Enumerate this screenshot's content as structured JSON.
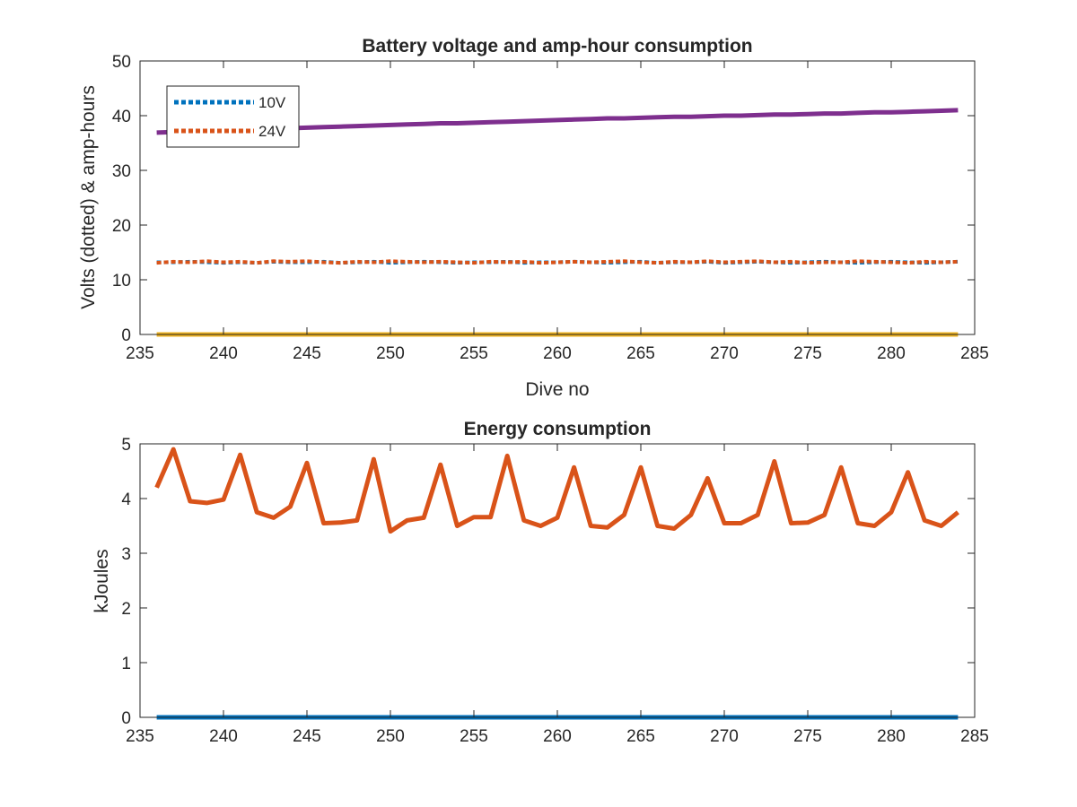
{
  "colors": {
    "blue": "#0072BD",
    "orange": "#D95319",
    "yellow": "#EDB120",
    "purple": "#7E2F8E",
    "axis": "#262626"
  },
  "chart_data": [
    {
      "type": "line",
      "title": "Battery voltage and amp-hour consumption",
      "xlabel": "Dive no",
      "ylabel": "Volts (dotted) & amp-hours",
      "xlim": [
        235,
        285
      ],
      "ylim": [
        0,
        50
      ],
      "xticks": [
        235,
        240,
        245,
        250,
        255,
        260,
        265,
        270,
        275,
        280,
        285
      ],
      "yticks": [
        0,
        10,
        20,
        30,
        40,
        50
      ],
      "grid": false,
      "legend": {
        "placement": "top-left",
        "entries": [
          "10V",
          "24V"
        ]
      },
      "x": [
        236,
        237,
        238,
        239,
        240,
        241,
        242,
        243,
        244,
        245,
        246,
        247,
        248,
        249,
        250,
        251,
        252,
        253,
        254,
        255,
        256,
        257,
        258,
        259,
        260,
        261,
        262,
        263,
        264,
        265,
        266,
        267,
        268,
        269,
        270,
        271,
        272,
        273,
        274,
        275,
        276,
        277,
        278,
        279,
        280,
        281,
        282,
        283,
        284
      ],
      "series": [
        {
          "name": "10V",
          "style": "dotted",
          "color": "blue",
          "values": [
            13.2,
            13.2,
            13.3,
            13.2,
            13.1,
            13.2,
            13.1,
            13.3,
            13.2,
            13.2,
            13.3,
            13.1,
            13.2,
            13.3,
            13.1,
            13.2,
            13.3,
            13.2,
            13.1,
            13.2,
            13.2,
            13.3,
            13.1,
            13.2,
            13.2,
            13.3,
            13.2,
            13.1,
            13.2,
            13.3,
            13.1,
            13.2,
            13.2,
            13.3,
            13.1,
            13.2,
            13.3,
            13.2,
            13.1,
            13.2,
            13.3,
            13.2,
            13.1,
            13.2,
            13.3,
            13.2,
            13.1,
            13.2,
            13.3
          ]
        },
        {
          "name": "24V",
          "style": "dotted",
          "color": "orange",
          "values": [
            13.1,
            13.3,
            13.2,
            13.4,
            13.2,
            13.3,
            13.1,
            13.4,
            13.3,
            13.4,
            13.2,
            13.1,
            13.3,
            13.2,
            13.4,
            13.3,
            13.2,
            13.3,
            13.2,
            13.1,
            13.3,
            13.2,
            13.3,
            13.1,
            13.2,
            13.3,
            13.2,
            13.3,
            13.4,
            13.2,
            13.1,
            13.3,
            13.2,
            13.4,
            13.2,
            13.3,
            13.4,
            13.2,
            13.3,
            13.1,
            13.2,
            13.2,
            13.4,
            13.3,
            13.2,
            13.1,
            13.3,
            13.2,
            13.3
          ]
        },
        {
          "style": "solid",
          "color": "yellow",
          "values": [
            0,
            0,
            0,
            0,
            0,
            0,
            0,
            0,
            0,
            0,
            0,
            0,
            0,
            0,
            0,
            0,
            0,
            0,
            0,
            0,
            0,
            0,
            0,
            0,
            0,
            0,
            0,
            0,
            0,
            0,
            0,
            0,
            0,
            0,
            0,
            0,
            0,
            0,
            0,
            0,
            0,
            0,
            0,
            0,
            0,
            0,
            0,
            0,
            0
          ]
        },
        {
          "style": "solid",
          "color": "purple",
          "values": [
            36.9,
            37.0,
            37.1,
            37.2,
            37.3,
            37.4,
            37.5,
            37.6,
            37.7,
            37.8,
            37.9,
            38.0,
            38.1,
            38.2,
            38.3,
            38.4,
            38.5,
            38.6,
            38.6,
            38.7,
            38.8,
            38.9,
            39.0,
            39.1,
            39.2,
            39.3,
            39.4,
            39.5,
            39.5,
            39.6,
            39.7,
            39.8,
            39.8,
            39.9,
            40.0,
            40.0,
            40.1,
            40.2,
            40.2,
            40.3,
            40.4,
            40.4,
            40.5,
            40.6,
            40.6,
            40.7,
            40.8,
            40.9,
            41.0
          ]
        }
      ]
    },
    {
      "type": "line",
      "title": "Energy consumption",
      "xlabel": "",
      "ylabel": "kJoules",
      "xlim": [
        235,
        285
      ],
      "ylim": [
        0,
        5
      ],
      "xticks": [
        235,
        240,
        245,
        250,
        255,
        260,
        265,
        270,
        275,
        280,
        285
      ],
      "yticks": [
        0,
        1,
        2,
        3,
        4,
        5
      ],
      "grid": false,
      "x": [
        236,
        237,
        238,
        239,
        240,
        241,
        242,
        243,
        244,
        245,
        246,
        247,
        248,
        249,
        250,
        251,
        252,
        253,
        254,
        255,
        256,
        257,
        258,
        259,
        260,
        261,
        262,
        263,
        264,
        265,
        266,
        267,
        268,
        269,
        270,
        271,
        272,
        273,
        274,
        275,
        276,
        277,
        278,
        279,
        280,
        281,
        282,
        283,
        284
      ],
      "series": [
        {
          "color": "orange",
          "values": [
            4.2,
            4.9,
            3.95,
            3.92,
            3.98,
            4.8,
            3.75,
            3.65,
            3.85,
            4.65,
            3.55,
            3.56,
            3.6,
            4.72,
            3.4,
            3.6,
            3.65,
            4.62,
            3.5,
            3.66,
            3.66,
            4.78,
            3.6,
            3.5,
            3.65,
            4.57,
            3.5,
            3.47,
            3.7,
            4.57,
            3.5,
            3.45,
            3.7,
            4.37,
            3.55,
            3.55,
            3.7,
            4.68,
            3.55,
            3.56,
            3.7,
            4.57,
            3.55,
            3.5,
            3.75,
            4.48,
            3.6,
            3.5,
            3.75
          ]
        },
        {
          "color": "blue",
          "values": [
            0,
            0,
            0,
            0,
            0,
            0,
            0,
            0,
            0,
            0,
            0,
            0,
            0,
            0,
            0,
            0,
            0,
            0,
            0,
            0,
            0,
            0,
            0,
            0,
            0,
            0,
            0,
            0,
            0,
            0,
            0,
            0,
            0,
            0,
            0,
            0,
            0,
            0,
            0,
            0,
            0,
            0,
            0,
            0,
            0,
            0,
            0,
            0,
            0
          ]
        }
      ]
    }
  ]
}
